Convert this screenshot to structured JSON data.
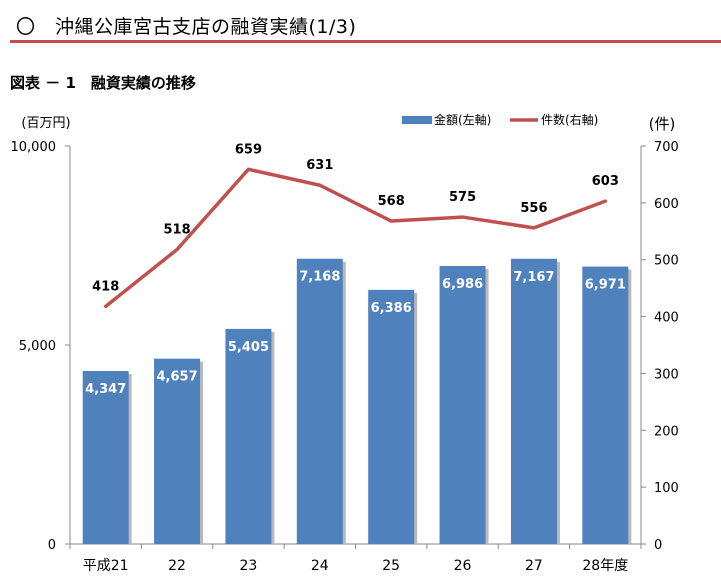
{
  "header": {
    "title": "〇　沖縄公庫宮古支店の融資実績(1/3)"
  },
  "figure": {
    "caption": "図表 － 1　融資実績の推移"
  },
  "chart_data": {
    "type": "bar",
    "categories": [
      "平成21",
      "22",
      "23",
      "24",
      "25",
      "26",
      "27",
      "28年度"
    ],
    "series": [
      {
        "name": "金額(左軸)",
        "type": "bar",
        "axis": "left",
        "values": [
          4347,
          4657,
          5405,
          7168,
          6386,
          6986,
          7167,
          6971
        ],
        "labels": [
          "4,347",
          "4,657",
          "5,405",
          "7,168",
          "6,386",
          "6,986",
          "7,167",
          "6,971"
        ],
        "color": "#4f81bd"
      },
      {
        "name": "件数(右軸)",
        "type": "line",
        "axis": "right",
        "values": [
          418,
          518,
          659,
          631,
          568,
          575,
          556,
          603
        ],
        "labels": [
          "418",
          "518",
          "659",
          "631",
          "568",
          "575",
          "556",
          "603"
        ],
        "color": "#c0504d"
      }
    ],
    "y_left": {
      "unit": "(百万円)",
      "ylim": [
        0,
        10000
      ],
      "ticks": [
        0,
        5000,
        10000
      ],
      "tick_labels": [
        "0",
        "5,000",
        "10,000"
      ]
    },
    "y_right": {
      "unit": "(件)",
      "ylim": [
        0,
        700
      ],
      "ticks": [
        0,
        100,
        200,
        300,
        400,
        500,
        600,
        700
      ],
      "tick_labels": [
        "0",
        "100",
        "200",
        "300",
        "400",
        "500",
        "600",
        "700"
      ]
    },
    "grid": false,
    "legend_position": "top-right"
  },
  "colors": {
    "accent_rule": "#c0504d",
    "bar": "#4f81bd",
    "line": "#c0504d"
  }
}
